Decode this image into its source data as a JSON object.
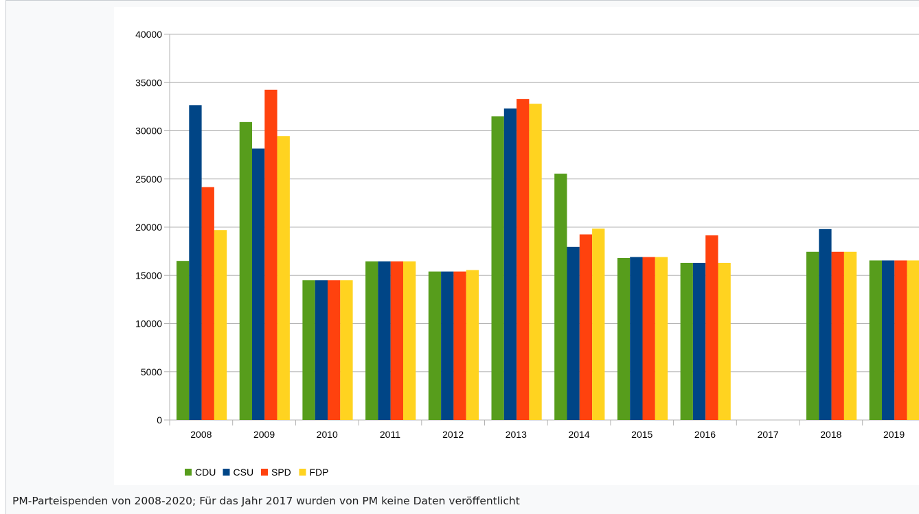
{
  "caption": "PM-Parteispenden von 2008-2020; Für das Jahr 2017 wurden von PM keine Daten veröffentlicht",
  "chart_data": {
    "type": "bar",
    "categories": [
      "2008",
      "2009",
      "2010",
      "2011",
      "2012",
      "2013",
      "2014",
      "2015",
      "2016",
      "2017",
      "2018",
      "2019"
    ],
    "series": [
      {
        "name": "CDU",
        "color": "#579d1c",
        "values": [
          16500,
          30900,
          14500,
          16450,
          15400,
          31500,
          25550,
          16800,
          16300,
          null,
          17450,
          16550
        ]
      },
      {
        "name": "CSU",
        "color": "#004586",
        "values": [
          32650,
          28150,
          14500,
          16450,
          15400,
          32300,
          17950,
          16900,
          16300,
          null,
          19800,
          16550
        ]
      },
      {
        "name": "SPD",
        "color": "#ff420e",
        "values": [
          24150,
          34250,
          14500,
          16450,
          15400,
          33300,
          19250,
          16900,
          19150,
          null,
          17450,
          16550
        ]
      },
      {
        "name": "FDP",
        "color": "#ffd320",
        "values": [
          19700,
          29450,
          14500,
          16450,
          15550,
          32800,
          19850,
          16900,
          16300,
          null,
          17450,
          16550
        ]
      }
    ],
    "ylim": [
      0,
      40000
    ],
    "yticks": [
      0,
      5000,
      10000,
      15000,
      20000,
      25000,
      30000,
      35000,
      40000
    ],
    "grid": true,
    "legend": "bottom-left"
  }
}
